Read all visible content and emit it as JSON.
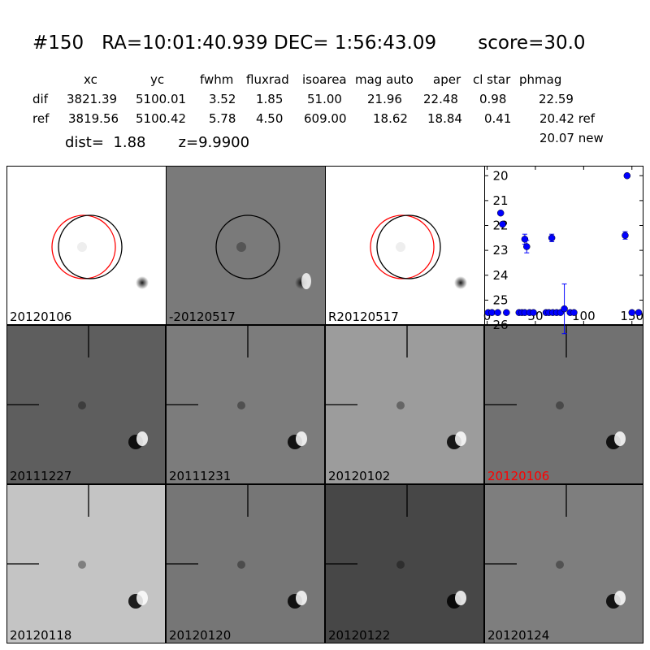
{
  "header": {
    "title": "#150   RA=10:01:40.939 DEC= 1:56:43.09       score=30.0",
    "columns": [
      "xc",
      "yc",
      "fwhm",
      "fluxrad",
      "isoarea",
      "mag auto",
      "aper",
      "cl star",
      "phmag"
    ],
    "rows": [
      {
        "label": "dif",
        "values": [
          "3821.39",
          "5100.01",
          "3.52",
          "1.85",
          "51.00",
          "21.96",
          "22.48",
          "0.98",
          "22.59"
        ]
      },
      {
        "label": "ref",
        "values": [
          "3819.56",
          "5100.42",
          "5.78",
          "4.50",
          "609.00",
          "18.62",
          "18.84",
          "0.41",
          "20.42 ref"
        ]
      }
    ],
    "phmag_new": "20.07 new",
    "dist_label": "dist=",
    "dist_value": "1.88",
    "z_label": "z=9.9900"
  },
  "top_panels": [
    {
      "label": "20120106",
      "bg": "#ffffff",
      "circles": [
        "red",
        "black"
      ]
    },
    {
      "label": "-20120517",
      "bg": "#7a7a7a",
      "circles": [
        "black"
      ]
    },
    {
      "label": "R20120517",
      "bg": "#ffffff",
      "circles": [
        "red",
        "black"
      ]
    }
  ],
  "grid_panels": [
    {
      "label": "20111227",
      "bg": "#5e5e5e",
      "label_color": "#000000"
    },
    {
      "label": "20111231",
      "bg": "#7c7c7c",
      "label_color": "#000000"
    },
    {
      "label": "20120102",
      "bg": "#9c9c9c",
      "label_color": "#000000"
    },
    {
      "label": "20120106",
      "bg": "#717171",
      "label_color": "#ff0000"
    },
    {
      "label": "20120118",
      "bg": "#c4c4c4",
      "label_color": "#000000"
    },
    {
      "label": "20120120",
      "bg": "#767676",
      "label_color": "#000000"
    },
    {
      "label": "20120122",
      "bg": "#474747",
      "label_color": "#000000"
    },
    {
      "label": "20120124",
      "bg": "#7e7e7e",
      "label_color": "#000000"
    }
  ],
  "chart_data": {
    "type": "scatter",
    "xlim": [
      -3,
      162
    ],
    "ylim": [
      26,
      19.6
    ],
    "xticks": [
      0,
      50,
      100,
      150
    ],
    "yticks": [
      20,
      21,
      22,
      23,
      24,
      25,
      26
    ],
    "color": "#0000ff",
    "points": [
      {
        "x": 1,
        "y": 25.5
      },
      {
        "x": 5,
        "y": 25.5
      },
      {
        "x": 11,
        "y": 25.5
      },
      {
        "x": 14,
        "y": 21.5
      },
      {
        "x": 16,
        "y": 21.95
      },
      {
        "x": 20,
        "y": 25.5
      },
      {
        "x": 33,
        "y": 25.5
      },
      {
        "x": 36,
        "y": 25.5
      },
      {
        "x": 39,
        "y": 25.5
      },
      {
        "x": 39,
        "y": 22.55,
        "err": 0.2
      },
      {
        "x": 41,
        "y": 22.85,
        "err": 0.25
      },
      {
        "x": 44,
        "y": 25.5
      },
      {
        "x": 48,
        "y": 25.5
      },
      {
        "x": 61,
        "y": 25.5
      },
      {
        "x": 64,
        "y": 25.5
      },
      {
        "x": 67,
        "y": 22.5,
        "err": 0.15
      },
      {
        "x": 68,
        "y": 25.5
      },
      {
        "x": 72,
        "y": 25.5
      },
      {
        "x": 76,
        "y": 25.5
      },
      {
        "x": 80,
        "y": 25.35,
        "err": 1.0
      },
      {
        "x": 86,
        "y": 25.5
      },
      {
        "x": 90,
        "y": 25.5
      },
      {
        "x": 143,
        "y": 22.4,
        "err": 0.15
      },
      {
        "x": 145,
        "y": 20.0
      },
      {
        "x": 150,
        "y": 25.5
      },
      {
        "x": 157,
        "y": 25.5
      }
    ]
  }
}
